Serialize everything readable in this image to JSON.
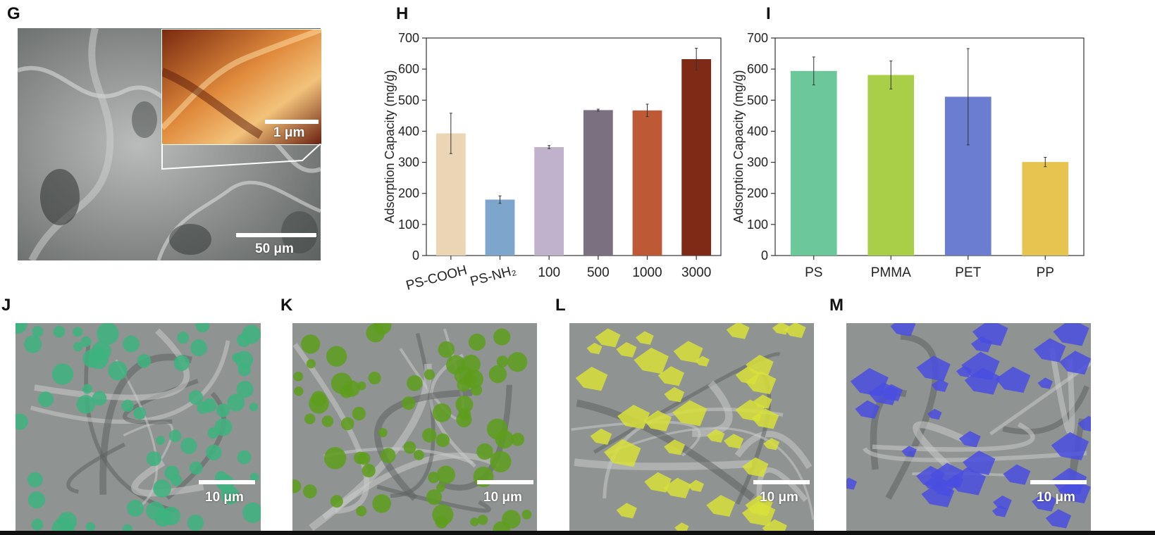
{
  "panels": {
    "G": {
      "letter": "G",
      "scale_main": "50 μm",
      "scale_inset": "1 μm",
      "main_tone": "#8e9290",
      "inset_tone": "#c8642a"
    },
    "H": {
      "letter": "H"
    },
    "I": {
      "letter": "I"
    },
    "J": {
      "letter": "J",
      "scale": "10 μm",
      "tint": "#3db37f"
    },
    "K": {
      "letter": "K",
      "scale": "10 μm",
      "tint": "#5e9e1c"
    },
    "L": {
      "letter": "L",
      "scale": "10 μm",
      "tint": "#d8e03a"
    },
    "M": {
      "letter": "M",
      "scale": "10 μm",
      "tint": "#4a4ee0"
    }
  },
  "chart_data": [
    {
      "type": "bar",
      "panel": "H",
      "ylabel": "Adsorption Capacity (mg/g)",
      "ylim": [
        0,
        700
      ],
      "yticks": [
        0,
        100,
        200,
        300,
        400,
        500,
        600,
        700
      ],
      "categories": [
        "PS-COOH",
        "PS-NH₂",
        "100",
        "500",
        "1000",
        "3000"
      ],
      "values": [
        393,
        180,
        349,
        468,
        467,
        632
      ],
      "errors": [
        65,
        12,
        5,
        3,
        20,
        35
      ],
      "colors": [
        "#ecd5b4",
        "#7ea6cc",
        "#c0b2cc",
        "#7b7080",
        "#bd5a35",
        "#7e2a16"
      ]
    },
    {
      "type": "bar",
      "panel": "I",
      "ylabel": "Adsorption Capacity (mg/g)",
      "ylim": [
        0,
        700
      ],
      "yticks": [
        0,
        100,
        200,
        300,
        400,
        500,
        600,
        700
      ],
      "categories": [
        "PS",
        "PMMA",
        "PET",
        "PP"
      ],
      "values": [
        594,
        581,
        511,
        301
      ],
      "errors": [
        45,
        45,
        155,
        15
      ],
      "colors": [
        "#6cc79a",
        "#a9ce47",
        "#6b7dd0",
        "#e7c450"
      ]
    }
  ]
}
